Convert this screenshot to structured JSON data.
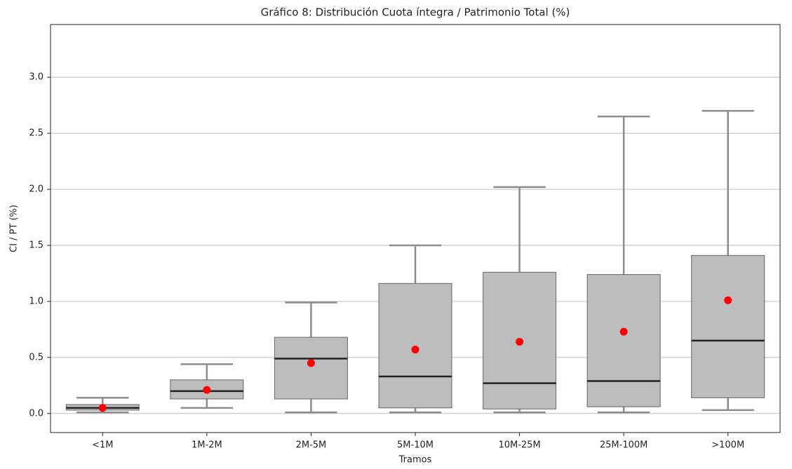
{
  "chart_data": {
    "type": "box",
    "title": "Gráfico 8: Distribución Cuota íntegra / Patrimonio Total (%)",
    "x_label": "Tramos",
    "y_label": "CI / PT (%)",
    "categories": [
      "<1M",
      "1M-2M",
      "2M-5M",
      "5M-10M",
      "10M-25M",
      "25M-100M",
      ">100M"
    ],
    "boxes": [
      {
        "whislo": 0.01,
        "q1": 0.03,
        "med": 0.05,
        "q3": 0.08,
        "whishi": 0.14,
        "mean": 0.05
      },
      {
        "whislo": 0.05,
        "q1": 0.13,
        "med": 0.2,
        "q3": 0.3,
        "whishi": 0.44,
        "mean": 0.21
      },
      {
        "whislo": 0.01,
        "q1": 0.13,
        "med": 0.49,
        "q3": 0.68,
        "whishi": 0.99,
        "mean": 0.45
      },
      {
        "whislo": 0.01,
        "q1": 0.05,
        "med": 0.33,
        "q3": 1.16,
        "whishi": 1.5,
        "mean": 0.57
      },
      {
        "whislo": 0.01,
        "q1": 0.04,
        "med": 0.27,
        "q3": 1.26,
        "whishi": 2.02,
        "mean": 0.64
      },
      {
        "whislo": 0.01,
        "q1": 0.06,
        "med": 0.29,
        "q3": 1.24,
        "whishi": 2.65,
        "mean": 0.73
      },
      {
        "whislo": 0.03,
        "q1": 0.14,
        "med": 0.65,
        "q3": 1.41,
        "whishi": 2.7,
        "mean": 1.01
      }
    ],
    "box_color": "#bdbdbd",
    "whisker_color": "#8c8c8c",
    "median_color": "#222222",
    "mean_color": "#ff0000",
    "ylim": [
      -0.17,
      3.47
    ],
    "yticks": [
      {
        "value": 0,
        "label": "0.0"
      },
      0.5,
      {
        "value": 1,
        "label": "1.0"
      },
      1.5,
      {
        "value": 2,
        "label": "2.0"
      },
      2.5,
      {
        "value": 3,
        "label": "3.0"
      }
    ],
    "grid": true
  }
}
